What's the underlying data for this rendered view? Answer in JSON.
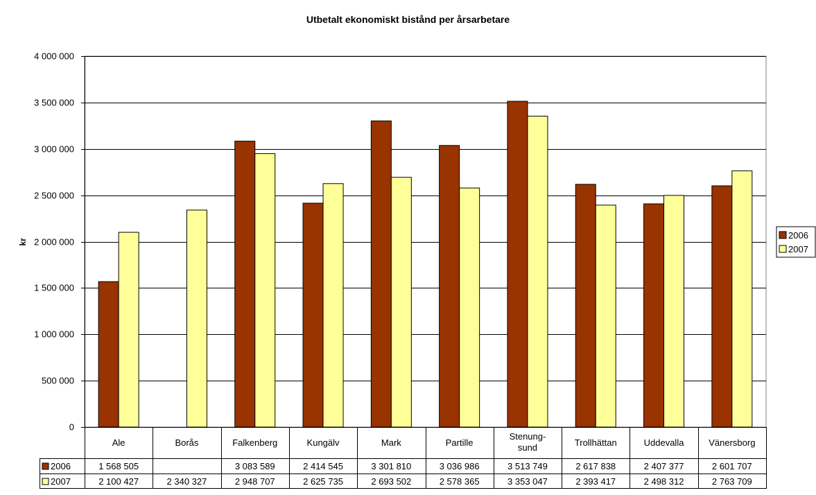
{
  "chart_data": {
    "type": "bar",
    "title": "Utbetalt ekonomiskt bistånd per årsarbetare",
    "ylabel": "kr",
    "xlabel": "",
    "ylim": [
      0,
      4000000
    ],
    "yticks": [
      "0",
      "500 000",
      "1 000 000",
      "1 500 000",
      "2 000 000",
      "2 500 000",
      "3 000 000",
      "3 500 000",
      "4 000 000"
    ],
    "ytick_values": [
      0,
      500000,
      1000000,
      1500000,
      2000000,
      2500000,
      3000000,
      3500000,
      4000000
    ],
    "categories": [
      "Ale",
      "Borås",
      "Falkenberg",
      "Kungälv",
      "Mark",
      "Partille",
      "Stenung-\nsund",
      "Trollhättan",
      "Uddevalla",
      "Vänersborg"
    ],
    "series": [
      {
        "name": "2006",
        "color": "#993300",
        "values": [
          1568505,
          null,
          3083589,
          2414545,
          3301810,
          3036986,
          3513749,
          2617838,
          2407377,
          2601707
        ],
        "labels": [
          "1 568 505",
          "",
          "3 083 589",
          "2 414 545",
          "3 301 810",
          "3 036 986",
          "3 513 749",
          "2 617 838",
          "2 407 377",
          "2 601 707"
        ]
      },
      {
        "name": "2007",
        "color": "#FFFF99",
        "values": [
          2100427,
          2340327,
          2948707,
          2625735,
          2693502,
          2578365,
          3353047,
          2393417,
          2498312,
          2763709
        ],
        "labels": [
          "2 100 427",
          "2 340 327",
          "2 948 707",
          "2 625 735",
          "2 693 502",
          "2 578 365",
          "3 353 047",
          "2 393 417",
          "2 498 312",
          "2 763 709"
        ]
      }
    ],
    "grid": true,
    "legend": "right",
    "data_table": true
  }
}
